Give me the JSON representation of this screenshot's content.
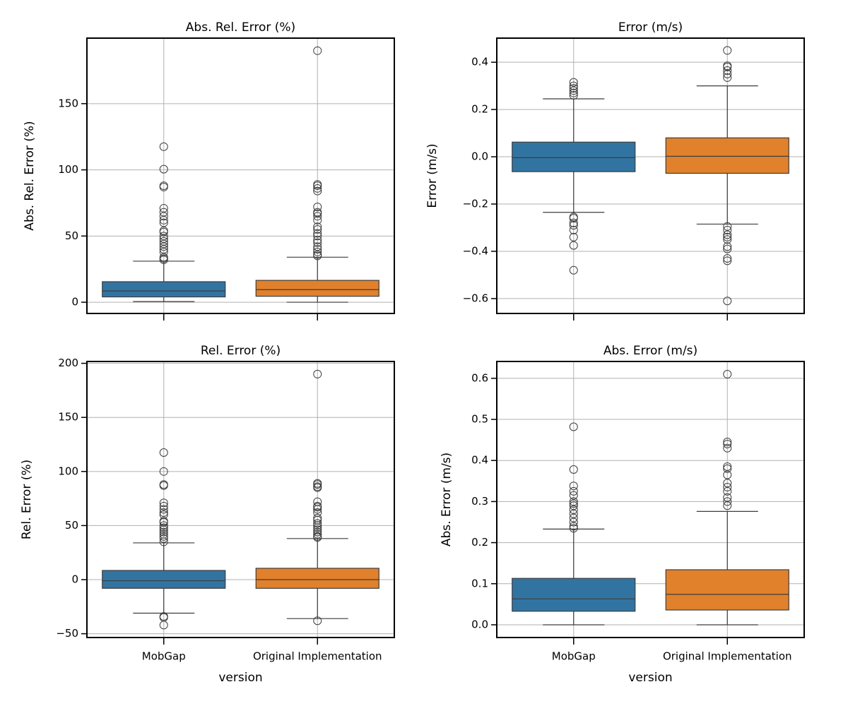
{
  "chart_data": [
    {
      "type": "box",
      "title": "Abs. Rel. Error (%)",
      "y_label": "Abs. Rel. Error (%)",
      "categories": [
        null,
        null
      ],
      "ylim": [
        -8.5,
        199.5
      ],
      "yticks": [
        0,
        50,
        100,
        150
      ],
      "grid": true,
      "boxes": [
        {
          "color": "#3274a1",
          "whisker_low": 0.5,
          "q1": 4,
          "median": 8.5,
          "q3": 15.5,
          "whisker_high": 31,
          "outliers": [
            32,
            33,
            34,
            38,
            40,
            42,
            44,
            46,
            48,
            50,
            53,
            54,
            60,
            62,
            65,
            68,
            71,
            87,
            88,
            100.5,
            117.5
          ]
        },
        {
          "color": "#e1812c",
          "whisker_low": 0,
          "q1": 4.5,
          "median": 9.5,
          "q3": 16.5,
          "whisker_high": 34,
          "outliers": [
            35,
            36,
            38,
            40,
            42,
            45,
            47,
            50,
            52,
            55,
            57,
            62,
            65,
            67,
            68,
            72,
            84,
            86,
            88,
            89,
            190
          ]
        }
      ]
    },
    {
      "type": "box",
      "title": "Error (m/s)",
      "y_label": "Error (m/s)",
      "categories": [
        null,
        null
      ],
      "ylim": [
        -0.663,
        0.502
      ],
      "yticks": [
        {
          "value": -0.6,
          "label": "−0.6"
        },
        {
          "value": -0.4,
          "label": "−0.4"
        },
        {
          "value": -0.2,
          "label": "−0.2"
        },
        {
          "value": 0,
          "label": "0.0"
        },
        0.2,
        0.4
      ],
      "grid": true,
      "boxes": [
        {
          "color": "#3274a1",
          "whisker_low": -0.235,
          "q1": -0.063,
          "median": -0.004,
          "q3": 0.062,
          "whisker_high": 0.245,
          "outliers": [
            0.26,
            0.27,
            0.28,
            0.29,
            0.3,
            0.315,
            -0.255,
            -0.26,
            -0.28,
            -0.29,
            -0.31,
            -0.34,
            -0.375,
            -0.48
          ]
        },
        {
          "color": "#e1812c",
          "whisker_low": -0.285,
          "q1": -0.07,
          "median": 0.002,
          "q3": 0.08,
          "whisker_high": 0.3,
          "outliers": [
            0.335,
            0.35,
            0.365,
            0.38,
            0.385,
            0.45,
            -0.295,
            -0.31,
            -0.33,
            -0.34,
            -0.35,
            -0.38,
            -0.39,
            -0.43,
            -0.44,
            -0.61
          ]
        }
      ]
    },
    {
      "type": "box",
      "title": "Rel. Error (%)",
      "y_label": "Rel. Error (%)",
      "x_label": "version",
      "categories": [
        "MobGap",
        "Original Implementation"
      ],
      "ylim": [
        -53.5,
        201.7
      ],
      "yticks": [
        {
          "value": -50,
          "label": "−50"
        },
        0,
        50,
        100,
        150,
        200
      ],
      "grid": true,
      "boxes": [
        {
          "color": "#3274a1",
          "whisker_low": -31,
          "q1": -8,
          "median": -1,
          "q3": 8.5,
          "whisker_high": 34,
          "outliers": [
            35,
            38,
            40,
            42,
            44,
            46,
            48,
            50,
            53,
            54,
            60,
            62,
            65,
            68,
            71,
            87,
            88,
            100,
            117.5,
            -34,
            -35,
            -42
          ]
        },
        {
          "color": "#e1812c",
          "whisker_low": -36,
          "q1": -8,
          "median": 0,
          "q3": 10.5,
          "whisker_high": 38,
          "outliers": [
            39,
            40,
            42,
            44,
            46,
            48,
            50,
            52,
            55,
            57,
            62,
            65,
            67,
            68,
            72,
            85,
            86,
            88,
            89,
            190,
            -38
          ]
        }
      ]
    },
    {
      "type": "box",
      "title": "Abs. Error (m/s)",
      "y_label": "Abs. Error (m/s)",
      "x_label": "version",
      "categories": [
        "MobGap",
        "Original Implementation"
      ],
      "ylim": [
        -0.031,
        0.641
      ],
      "yticks": [
        {
          "value": 0,
          "label": "0.0"
        },
        0.1,
        0.2,
        0.3,
        0.4,
        0.5,
        0.6
      ],
      "grid": true,
      "boxes": [
        {
          "color": "#3274a1",
          "whisker_low": 0,
          "q1": 0.033,
          "median": 0.063,
          "q3": 0.113,
          "whisker_high": 0.233,
          "outliers": [
            0.235,
            0.24,
            0.25,
            0.26,
            0.27,
            0.28,
            0.29,
            0.295,
            0.3,
            0.315,
            0.325,
            0.338,
            0.378,
            0.482
          ]
        },
        {
          "color": "#e1812c",
          "whisker_low": 0,
          "q1": 0.036,
          "median": 0.074,
          "q3": 0.134,
          "whisker_high": 0.276,
          "outliers": [
            0.29,
            0.3,
            0.31,
            0.325,
            0.335,
            0.345,
            0.365,
            0.38,
            0.385,
            0.43,
            0.44,
            0.445,
            0.61
          ]
        }
      ]
    }
  ]
}
